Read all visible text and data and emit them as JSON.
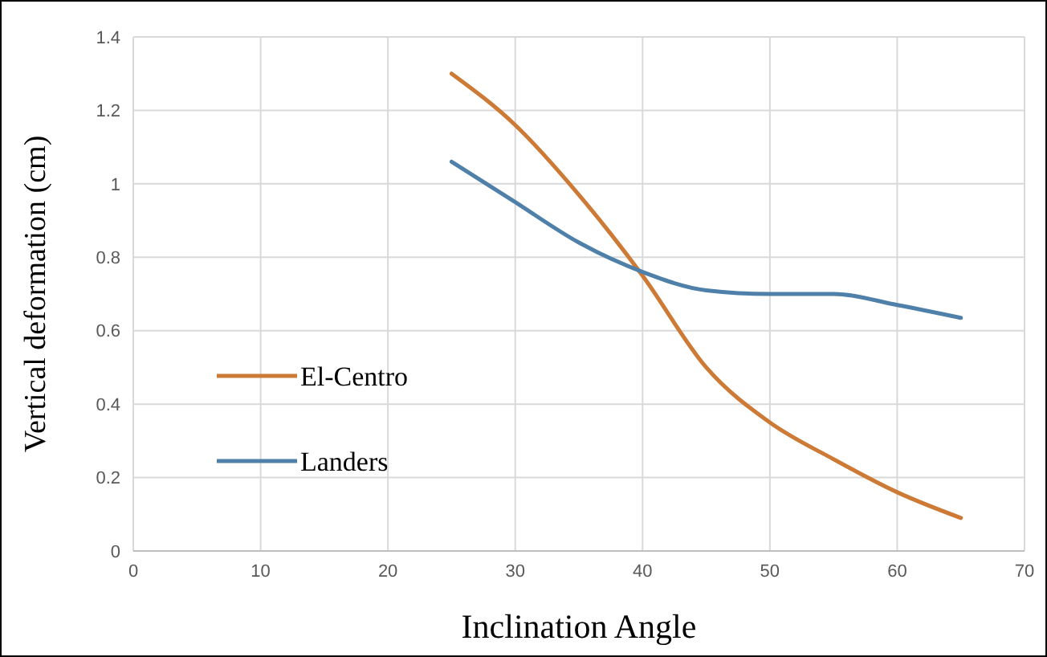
{
  "chart_data": {
    "type": "line",
    "xlabel": "Inclination Angle",
    "ylabel": "Vertical deformation (cm)",
    "xlim": [
      0,
      70
    ],
    "xticks": [
      0,
      10,
      20,
      30,
      40,
      50,
      60,
      70
    ],
    "ylim": [
      0,
      1.4
    ],
    "yticks": [
      0,
      0.2,
      0.4,
      0.6,
      0.8,
      1,
      1.2,
      1.4
    ],
    "grid": true,
    "legend": "left",
    "marker": "none",
    "line_style": "solid",
    "x": [
      25,
      30,
      35,
      40,
      45,
      50,
      55,
      60,
      65
    ],
    "series": [
      {
        "name": "El-Centro",
        "color": "#cc7a35",
        "values": [
          1.3,
          1.16,
          0.97,
          0.75,
          0.5,
          0.35,
          0.25,
          0.16,
          0.09
        ]
      },
      {
        "name": "Landers",
        "color": "#4f80aa",
        "values": [
          1.06,
          0.95,
          0.84,
          0.76,
          0.71,
          0.7,
          0.7,
          0.67,
          0.635
        ]
      }
    ]
  }
}
